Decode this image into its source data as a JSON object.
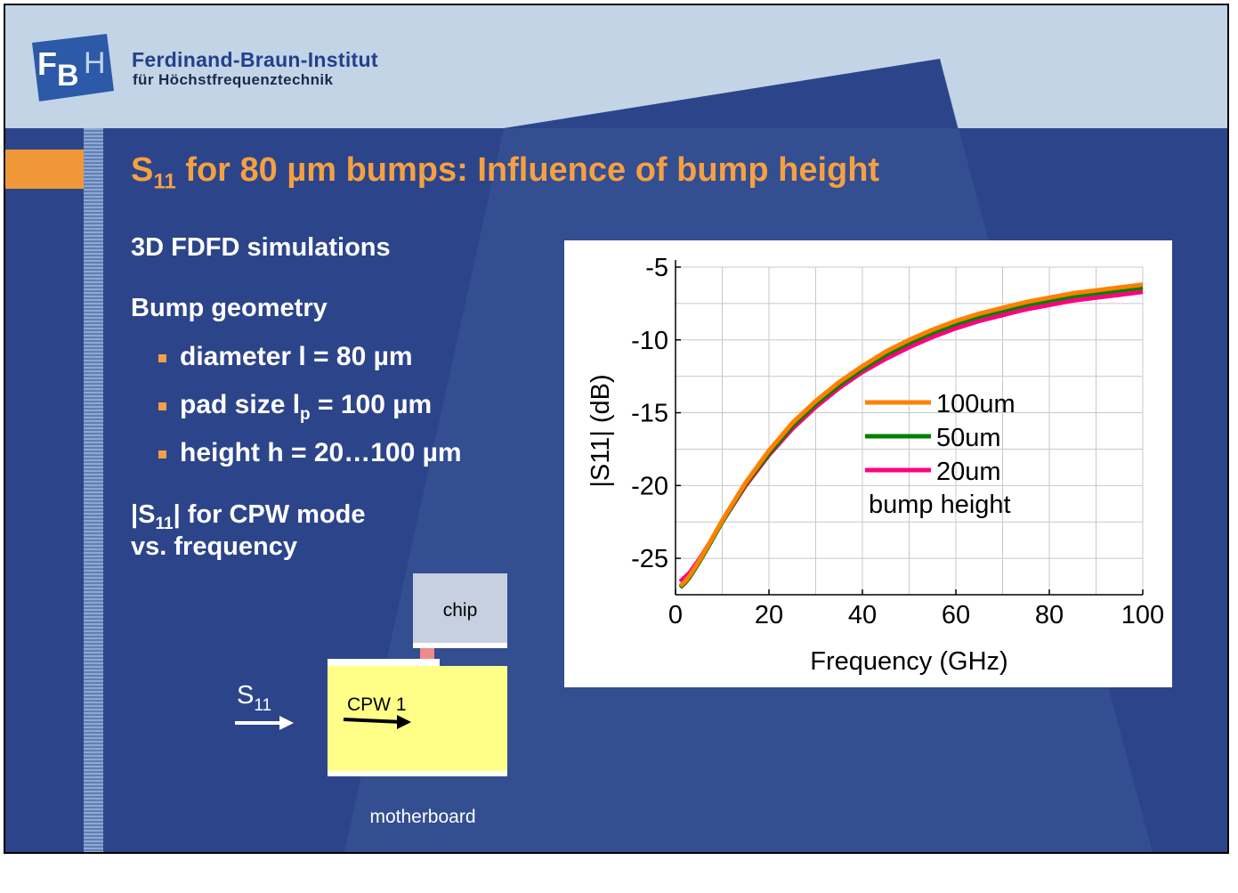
{
  "header": {
    "logo_text": "FBH",
    "institute_name": "Ferdinand-Braun-Institut",
    "institute_subtitle": "für Höchstfrequenztechnik"
  },
  "slide": {
    "title_prefix": "S",
    "title_sub": "11",
    "title_rest": " for 80 µm bumps: Influence of bump height",
    "line1": "3D FDFD simulations",
    "line2": "Bump geometry",
    "bullets": {
      "b1": "diameter l = 80 µm",
      "b2_pre": "pad size l",
      "b2_sub": "p",
      "b2_post": " = 100 µm",
      "b3": "height h = 20…100 µm"
    },
    "s11_line1_pre": "|S",
    "s11_line1_sub": "11",
    "s11_line1_post": "| for CPW mode",
    "s11_line2": "vs. frequency"
  },
  "diagram": {
    "chip_label": "chip",
    "cpw_label": "CPW 1",
    "s_label": "S",
    "s_sub": "11",
    "motherboard_label": "motherboard",
    "colors": {
      "chip": "#c6d0e0",
      "board": "#ffff88",
      "pad": "#f08a8a"
    }
  },
  "chart_data": {
    "type": "line",
    "xlabel": "Frequency (GHz)",
    "ylabel": "|S11| (dB)",
    "xlim": [
      0,
      100
    ],
    "ylim": [
      -27.5,
      -5
    ],
    "xticks": [
      0,
      20,
      40,
      60,
      80,
      100
    ],
    "yticks": [
      -5,
      -10,
      -15,
      -20,
      -25
    ],
    "grid": true,
    "legend_position": "center-right",
    "legend_title": "bump height",
    "x": [
      1,
      2,
      3,
      5,
      7,
      10,
      15,
      20,
      25,
      30,
      35,
      40,
      45,
      50,
      55,
      60,
      65,
      70,
      75,
      80,
      85,
      90,
      95,
      100
    ],
    "series": [
      {
        "name": "100um",
        "color": "#ff8000",
        "values": [
          -26.9,
          -26.6,
          -26.2,
          -25.2,
          -24.1,
          -22.4,
          -19.8,
          -17.6,
          -15.7,
          -14.2,
          -12.9,
          -11.8,
          -10.8,
          -10.0,
          -9.3,
          -8.7,
          -8.2,
          -7.8,
          -7.4,
          -7.1,
          -6.8,
          -6.6,
          -6.4,
          -6.2
        ]
      },
      {
        "name": "50um",
        "color": "#008000",
        "values": [
          -27.0,
          -26.7,
          -26.3,
          -25.3,
          -24.2,
          -22.5,
          -19.9,
          -17.8,
          -15.9,
          -14.4,
          -13.1,
          -12.0,
          -11.0,
          -10.2,
          -9.5,
          -8.9,
          -8.4,
          -8.0,
          -7.6,
          -7.3,
          -7.0,
          -6.8,
          -6.6,
          -6.4
        ]
      },
      {
        "name": "20um",
        "color": "#ff0080",
        "values": [
          -26.6,
          -26.3,
          -26.0,
          -25.1,
          -24.1,
          -22.5,
          -20.0,
          -17.9,
          -16.1,
          -14.6,
          -13.3,
          -12.2,
          -11.3,
          -10.5,
          -9.8,
          -9.2,
          -8.7,
          -8.3,
          -7.9,
          -7.6,
          -7.3,
          -7.1,
          -6.9,
          -6.7
        ]
      }
    ]
  }
}
